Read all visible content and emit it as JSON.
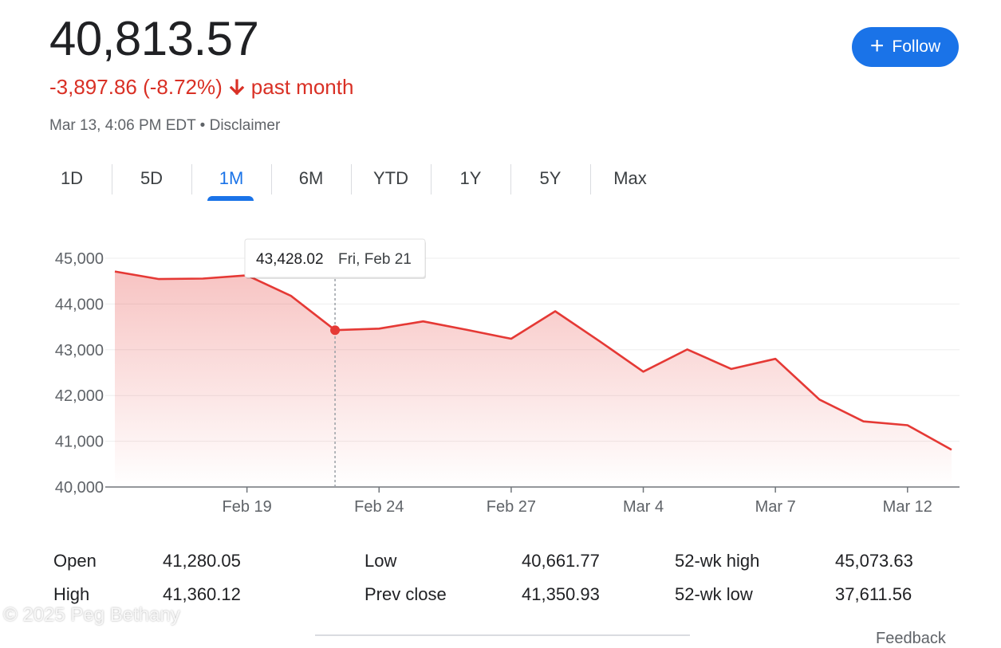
{
  "header": {
    "price": "40,813.57",
    "change": "-3,897.86 (-8.72%)",
    "period": "past month",
    "timestamp": "Mar 13, 4:06 PM EDT",
    "separator": "•",
    "disclaimer": "Disclaimer",
    "follow_plus": "+",
    "follow_label": "Follow"
  },
  "tabs": [
    {
      "label": "1D"
    },
    {
      "label": "5D"
    },
    {
      "label": "1M"
    },
    {
      "label": "6M"
    },
    {
      "label": "YTD"
    },
    {
      "label": "1Y"
    },
    {
      "label": "5Y"
    },
    {
      "label": "Max"
    }
  ],
  "active_tab": "1M",
  "colors": {
    "line": "#e53935",
    "accent": "#1a73e8",
    "negative": "#d93025"
  },
  "tooltip": {
    "value": "43,428.02",
    "date": "Fri, Feb 21"
  },
  "chart_data": {
    "type": "area",
    "ylim": [
      40000,
      45000
    ],
    "y_ticks": [
      40000,
      41000,
      42000,
      43000,
      44000,
      45000
    ],
    "y_tick_labels": [
      "40,000",
      "41,000",
      "42,000",
      "43,000",
      "44,000",
      "45,000"
    ],
    "x_ticks": [
      {
        "label": "Feb 19",
        "at": 3
      },
      {
        "label": "Feb 24",
        "at": 6
      },
      {
        "label": "Feb 27",
        "at": 9
      },
      {
        "label": "Mar 4",
        "at": 12
      },
      {
        "label": "Mar 7",
        "at": 15
      },
      {
        "label": "Mar 12",
        "at": 18
      }
    ],
    "x": [
      "Feb 13",
      "Feb 14",
      "Feb 18",
      "Feb 19",
      "Feb 20",
      "Feb 21",
      "Feb 24",
      "Feb 25",
      "Feb 26",
      "Feb 27",
      "Feb 28",
      "Mar 3",
      "Mar 4",
      "Mar 5",
      "Mar 6",
      "Mar 7",
      "Mar 10",
      "Mar 11",
      "Mar 12",
      "Mar 13"
    ],
    "values": [
      44711,
      44546,
      44556,
      44627,
      44177,
      43428,
      43461,
      43621,
      43433,
      43240,
      43841,
      43191,
      42521,
      43007,
      42580,
      42802,
      41912,
      41433,
      41350,
      40814
    ],
    "highlight_index": 5,
    "grid": true
  },
  "stats": {
    "col1": {
      "labels": [
        "Open",
        "High"
      ],
      "values": [
        "41,280.05",
        "41,360.12"
      ]
    },
    "col2": {
      "labels": [
        "Low",
        "Prev close"
      ],
      "values": [
        "40,661.77",
        "41,350.93"
      ]
    },
    "col3": {
      "labels": [
        "52-wk high",
        "52-wk low"
      ],
      "values": [
        "45,073.63",
        "37,611.56"
      ]
    }
  },
  "watermark": "© 2025 Peg Bethany",
  "cut_text": "Feedback"
}
